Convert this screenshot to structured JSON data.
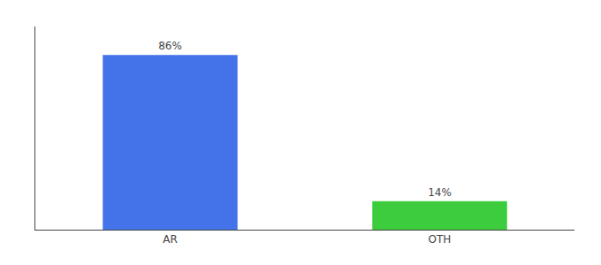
{
  "chart_data": {
    "type": "bar",
    "categories": [
      "AR",
      "OTH"
    ],
    "values": [
      86,
      14
    ],
    "value_labels": [
      "86%",
      "14%"
    ],
    "data_labels": true,
    "colors": [
      "#4472e8",
      "#3dcc3d"
    ],
    "ylim": [
      0,
      100
    ],
    "grid": false,
    "tick_labels": "x"
  }
}
